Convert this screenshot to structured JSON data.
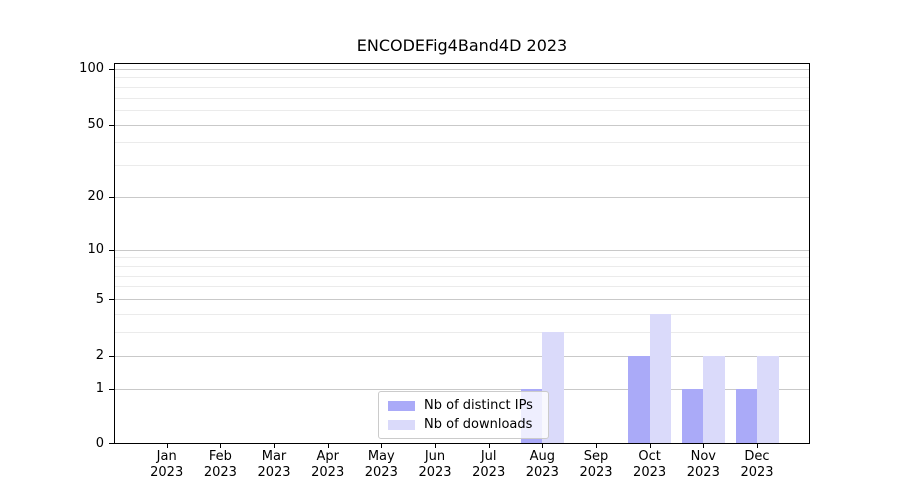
{
  "chart_data": {
    "type": "bar",
    "title": "ENCODEFig4Band4D 2023",
    "categories": [
      "Jan 2023",
      "Feb 2023",
      "Mar 2023",
      "Apr 2023",
      "May 2023",
      "Jun 2023",
      "Jul 2023",
      "Aug 2023",
      "Sep 2023",
      "Oct 2023",
      "Nov 2023",
      "Dec 2023"
    ],
    "series": [
      {
        "name": "Nb of distinct IPs",
        "color": "#aaaaf8",
        "values": [
          0,
          0,
          0,
          0,
          0,
          0,
          0,
          1,
          0,
          2,
          1,
          1
        ]
      },
      {
        "name": "Nb of downloads",
        "color": "#dadafa",
        "values": [
          0,
          0,
          0,
          0,
          0,
          0,
          0,
          3,
          0,
          4,
          2,
          2
        ]
      }
    ],
    "xlabel": "",
    "ylabel": "",
    "yscale": "log1p",
    "y_major_ticks": [
      0,
      1,
      2,
      5,
      10,
      20,
      50,
      100
    ],
    "y_tick_labels": [
      "0",
      "1",
      "2",
      "5",
      "10",
      "20",
      "50",
      "100"
    ],
    "y_minor_gridlines": [
      3,
      4,
      6,
      7,
      8,
      9,
      30,
      40,
      60,
      70,
      80,
      90
    ],
    "ylim": [
      0,
      110
    ],
    "grid": true,
    "legend_position": "lower center",
    "colors": {
      "major_grid": "#c9c9c9",
      "minor_grid": "#ebebeb",
      "spine": "#000000",
      "background": "#ffffff"
    }
  }
}
